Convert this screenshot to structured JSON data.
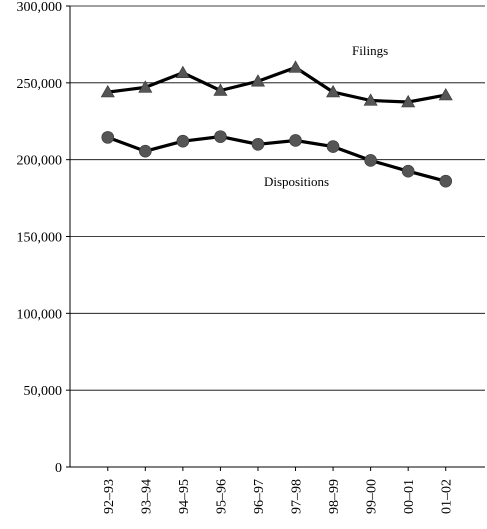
{
  "chart_data": {
    "type": "line",
    "title": "",
    "xlabel": "",
    "ylabel": "",
    "categories": [
      "92–93",
      "93–94",
      "94–95",
      "95–96",
      "96–97",
      "97–98",
      "98–99",
      "99–00",
      "00–01",
      "01–02"
    ],
    "ylim": [
      0,
      300000
    ],
    "yticks": [
      0,
      50000,
      100000,
      150000,
      200000,
      250000,
      300000
    ],
    "ytick_labels": [
      "0",
      "50,000",
      "100,000",
      "150,000",
      "200,000",
      "250,000",
      "300,000"
    ],
    "grid": "horizontal",
    "series": [
      {
        "name": "Filings",
        "marker": "triangle",
        "color": "#000000",
        "marker_color": "#555555",
        "values": [
          244000,
          247000,
          256500,
          245000,
          251000,
          260000,
          244000,
          238500,
          237500,
          242000
        ]
      },
      {
        "name": "Dispositions",
        "marker": "circle",
        "color": "#000000",
        "marker_color": "#555555",
        "values": [
          214500,
          205500,
          212000,
          215000,
          210000,
          212500,
          208500,
          199500,
          192500,
          186000
        ]
      }
    ]
  }
}
